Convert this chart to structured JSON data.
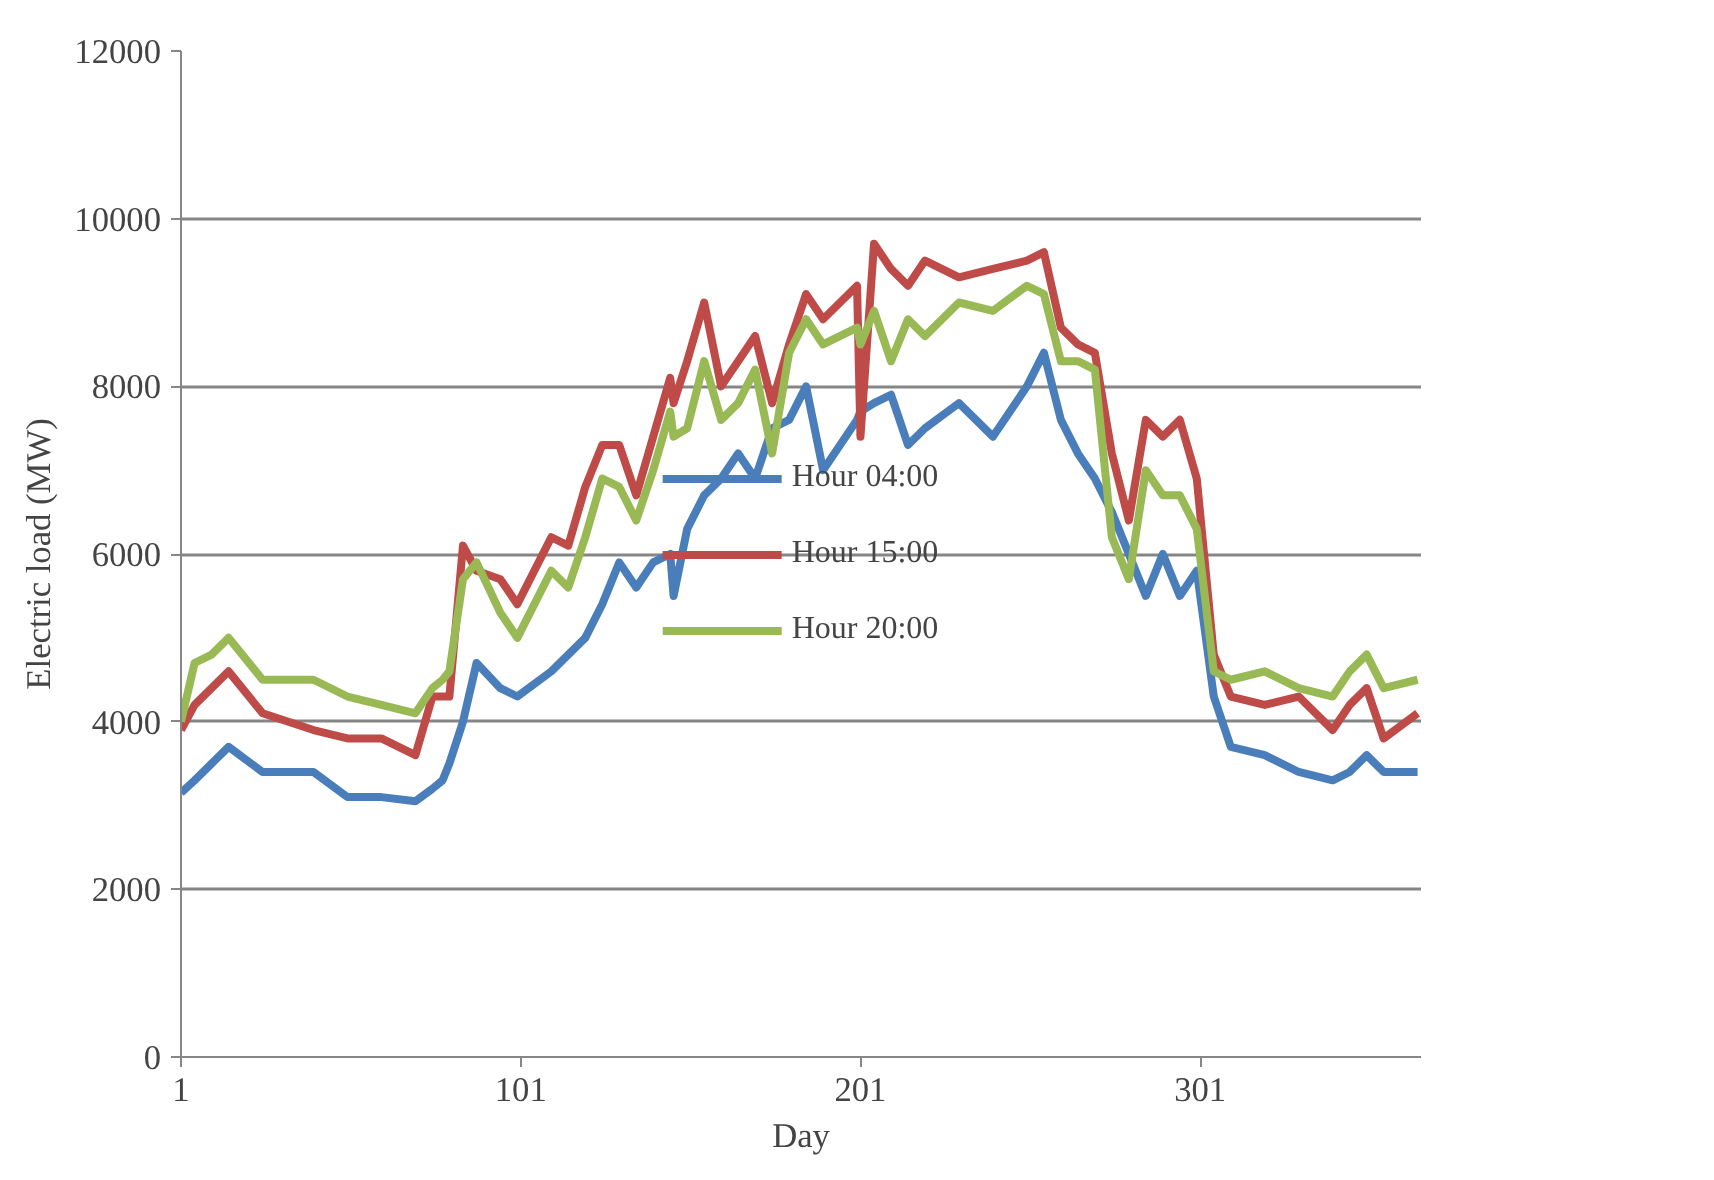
{
  "chart_data": {
    "type": "line",
    "xlabel": "Day",
    "ylabel": "Electric load (MW)",
    "xlim": [
      1,
      366
    ],
    "xticks": [
      1,
      101,
      201,
      301
    ],
    "ylim": [
      0,
      12000
    ],
    "yticks": [
      0,
      2000,
      4000,
      6000,
      8000,
      10000,
      12000
    ],
    "grid": "y",
    "legend": "center",
    "marker": "none",
    "line_style": "solid",
    "x": [
      1,
      5,
      10,
      15,
      25,
      40,
      50,
      60,
      70,
      75,
      78,
      80,
      84,
      88,
      95,
      100,
      110,
      115,
      120,
      125,
      130,
      135,
      140,
      145,
      146,
      150,
      155,
      160,
      165,
      170,
      175,
      180,
      185,
      190,
      200,
      201,
      205,
      210,
      215,
      220,
      230,
      240,
      250,
      255,
      260,
      265,
      270,
      275,
      280,
      285,
      290,
      295,
      300,
      305,
      310,
      320,
      330,
      340,
      345,
      350,
      355,
      365
    ],
    "series": [
      {
        "name": "Hour 04:00",
        "color": "#4a7ebb",
        "values": [
          3150,
          3300,
          3500,
          3700,
          3400,
          3400,
          3100,
          3100,
          3050,
          3200,
          3300,
          3500,
          4000,
          4700,
          4400,
          4300,
          4600,
          4800,
          5000,
          5400,
          5900,
          5600,
          5900,
          6000,
          5500,
          6300,
          6700,
          6900,
          7200,
          6900,
          7500,
          7600,
          8000,
          7000,
          7600,
          7700,
          7800,
          7900,
          7300,
          7500,
          7800,
          7400,
          8000,
          8400,
          7600,
          7200,
          6900,
          6500,
          6000,
          5500,
          6000,
          5500,
          5800,
          4300,
          3700,
          3600,
          3400,
          3300,
          3400,
          3600,
          3400,
          3400
        ]
      },
      {
        "name": "Hour 15:00",
        "color": "#be4b48",
        "values": [
          3900,
          4200,
          4400,
          4600,
          4100,
          3900,
          3800,
          3800,
          3600,
          4300,
          4300,
          4300,
          6100,
          5800,
          5700,
          5400,
          6200,
          6100,
          6800,
          7300,
          7300,
          6700,
          7400,
          8100,
          7800,
          8300,
          9000,
          8000,
          8300,
          8600,
          7800,
          8500,
          9100,
          8800,
          9200,
          7400,
          9700,
          9400,
          9200,
          9500,
          9300,
          9400,
          9500,
          9600,
          8700,
          8500,
          8400,
          7200,
          6400,
          7600,
          7400,
          7600,
          6900,
          4800,
          4300,
          4200,
          4300,
          3900,
          4200,
          4400,
          3800,
          4100
        ]
      },
      {
        "name": "Hour 20:00",
        "color": "#98b954",
        "values": [
          4000,
          4700,
          4800,
          5000,
          4500,
          4500,
          4300,
          4200,
          4100,
          4400,
          4500,
          4600,
          5700,
          5900,
          5300,
          5000,
          5800,
          5600,
          6200,
          6900,
          6800,
          6400,
          7000,
          7700,
          7400,
          7500,
          8300,
          7600,
          7800,
          8200,
          7200,
          8400,
          8800,
          8500,
          8700,
          8500,
          8900,
          8300,
          8800,
          8600,
          9000,
          8900,
          9200,
          9100,
          8300,
          8300,
          8200,
          6200,
          5700,
          7000,
          6700,
          6700,
          6300,
          4600,
          4500,
          4600,
          4400,
          4300,
          4600,
          4800,
          4400,
          4500
        ]
      }
    ]
  }
}
